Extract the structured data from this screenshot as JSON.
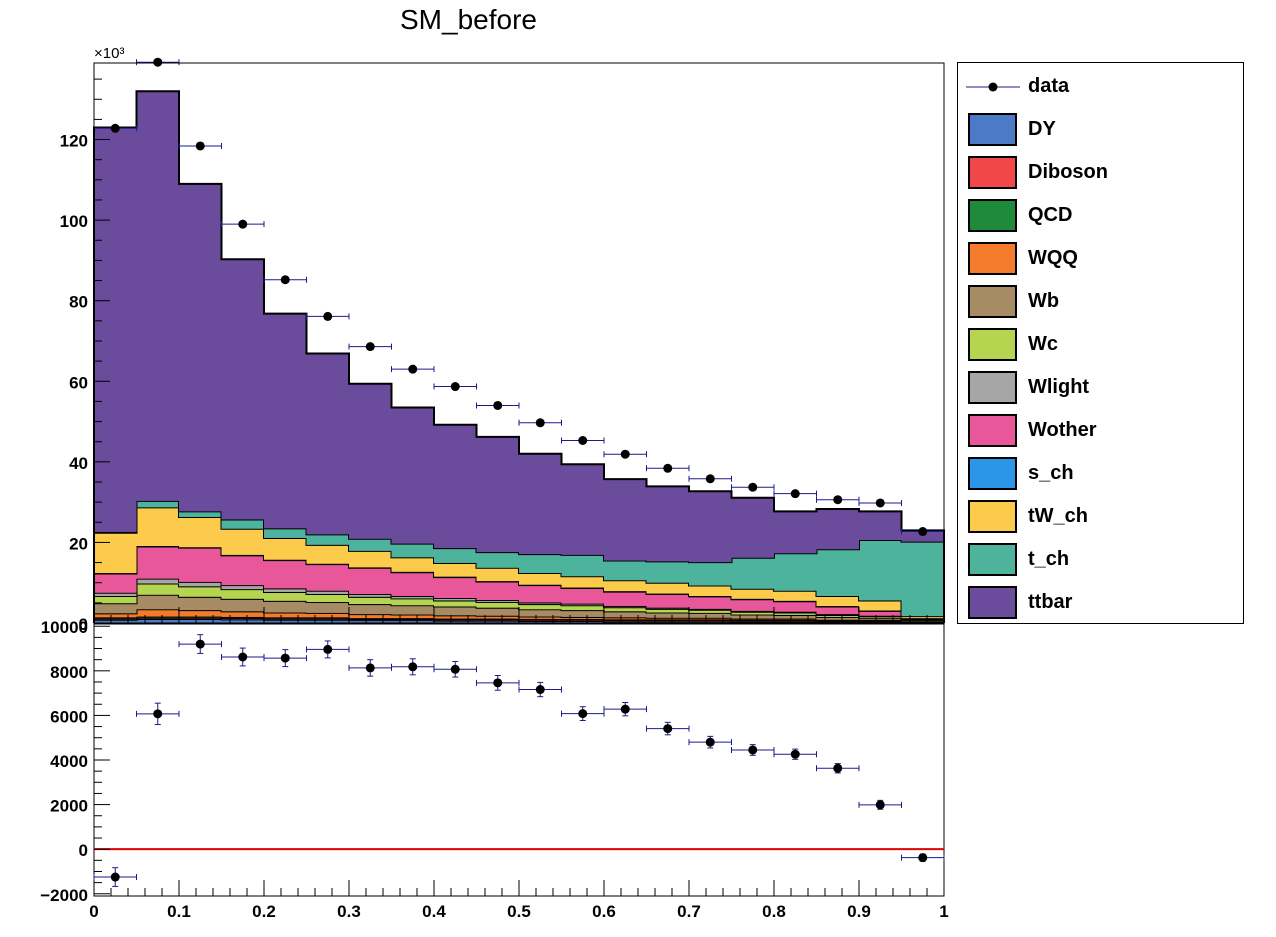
{
  "chart_data": [
    {
      "type": "bar",
      "subtype": "stacked-histogram-with-data-points",
      "title": "SM_before",
      "xlabel": "",
      "ylabel": "",
      "y_exponent_label": "×10³",
      "xlim": [
        0,
        1
      ],
      "ylim": [
        0,
        139
      ],
      "y_unit_scale": 1000,
      "y_ticks": [
        0,
        20,
        40,
        60,
        80,
        100,
        120
      ],
      "bin_edges": [
        0,
        0.05,
        0.1,
        0.15,
        0.2,
        0.25,
        0.3,
        0.35,
        0.4,
        0.45,
        0.5,
        0.55,
        0.6,
        0.65,
        0.7,
        0.75,
        0.8,
        0.85,
        0.9,
        0.95,
        1.0
      ],
      "legend_position": "right",
      "stack_order_bottom_to_top": [
        "DY",
        "Diboson",
        "QCD",
        "WQQ",
        "Wb",
        "Wc",
        "Wlight",
        "Wother",
        "s_ch",
        "tW_ch",
        "t_ch",
        "ttbar"
      ],
      "series": [
        {
          "name": "DY",
          "color": "#4d7ac7",
          "values": [
            0.8,
            1.0,
            1.0,
            0.9,
            0.8,
            0.8,
            0.7,
            0.7,
            0.6,
            0.6,
            0.5,
            0.5,
            0.4,
            0.4,
            0.4,
            0.3,
            0.3,
            0.2,
            0.2,
            0.1
          ]
        },
        {
          "name": "Diboson",
          "color": "#f04848",
          "values": [
            0.3,
            0.3,
            0.3,
            0.3,
            0.3,
            0.3,
            0.3,
            0.3,
            0.3,
            0.3,
            0.3,
            0.3,
            0.3,
            0.3,
            0.3,
            0.3,
            0.3,
            0.2,
            0.2,
            0.1
          ]
        },
        {
          "name": "QCD",
          "color": "#1f8a3c",
          "values": [
            0.3,
            0.3,
            0.3,
            0.3,
            0.3,
            0.3,
            0.2,
            0.2,
            0.2,
            0.2,
            0.2,
            0.2,
            0.2,
            0.2,
            0.2,
            0.2,
            0.2,
            0.2,
            0.2,
            0.1
          ]
        },
        {
          "name": "WQQ",
          "color": "#f37b2b",
          "values": [
            1.0,
            1.8,
            1.6,
            1.4,
            1.2,
            1.1,
            1.0,
            0.9,
            0.8,
            0.7,
            0.6,
            0.5,
            0.5,
            0.4,
            0.4,
            0.3,
            0.3,
            0.2,
            0.2,
            0.1
          ]
        },
        {
          "name": "Wb",
          "color": "#a78b64",
          "values": [
            2.5,
            3.6,
            3.3,
            3.1,
            2.9,
            2.7,
            2.5,
            2.3,
            2.2,
            2.0,
            1.8,
            1.7,
            1.5,
            1.3,
            1.2,
            1.0,
            0.9,
            0.7,
            0.5,
            0.3
          ]
        },
        {
          "name": "Wc",
          "color": "#b5d44f",
          "values": [
            1.8,
            2.8,
            2.6,
            2.4,
            2.2,
            2.0,
            1.8,
            1.7,
            1.5,
            1.4,
            1.3,
            1.2,
            1.0,
            0.9,
            0.8,
            0.7,
            0.6,
            0.5,
            0.4,
            0.2
          ]
        },
        {
          "name": "Wlight",
          "color": "#a6a6a6",
          "values": [
            0.8,
            1.2,
            1.1,
            1.0,
            0.9,
            0.8,
            0.7,
            0.6,
            0.6,
            0.5,
            0.4,
            0.4,
            0.3,
            0.3,
            0.2,
            0.2,
            0.2,
            0.2,
            0.1,
            0.1
          ]
        },
        {
          "name": "Wother",
          "color": "#e8579a",
          "values": [
            4.8,
            8.0,
            8.5,
            7.4,
            7.0,
            6.6,
            6.5,
            5.9,
            5.2,
            4.6,
            4.3,
            3.9,
            3.6,
            3.4,
            3.1,
            2.9,
            2.6,
            1.9,
            1.2,
            0.1
          ]
        },
        {
          "name": "s_ch",
          "color": "#2b95e8",
          "values": [
            0.1,
            0.1,
            0.1,
            0.1,
            0.1,
            0.1,
            0.1,
            0.1,
            0.1,
            0.1,
            0.1,
            0.1,
            0.1,
            0.1,
            0.1,
            0.1,
            0.1,
            0.1,
            0.1,
            0.1
          ]
        },
        {
          "name": "tW_ch",
          "color": "#fccb4c",
          "values": [
            10.0,
            9.6,
            7.5,
            6.5,
            5.4,
            4.7,
            4.1,
            3.6,
            3.4,
            3.3,
            2.9,
            2.8,
            2.7,
            2.7,
            2.6,
            2.5,
            2.5,
            2.5,
            2.5,
            0.5
          ]
        },
        {
          "name": "t_ch",
          "color": "#4db39c",
          "values": [
            0.2,
            1.6,
            1.4,
            2.3,
            2.4,
            2.6,
            3.0,
            3.4,
            3.7,
            3.9,
            4.7,
            5.3,
            4.9,
            5.3,
            5.8,
            7.7,
            9.3,
            11.6,
            15.0,
            18.5
          ]
        },
        {
          "name": "ttbar",
          "color": "#6a4b9c",
          "values": [
            100.4,
            101.7,
            81.3,
            64.6,
            53.3,
            44.9,
            38.5,
            33.8,
            30.6,
            28.6,
            24.9,
            22.5,
            20.2,
            18.6,
            17.6,
            14.9,
            10.4,
            10.0,
            7.1,
            2.8
          ]
        }
      ],
      "data_series": {
        "name": "data",
        "color": "#000000",
        "x": [
          0.025,
          0.075,
          0.125,
          0.175,
          0.225,
          0.275,
          0.325,
          0.375,
          0.425,
          0.475,
          0.525,
          0.575,
          0.625,
          0.675,
          0.725,
          0.775,
          0.825,
          0.875,
          0.925,
          0.975
        ],
        "values": [
          122.8,
          139.2,
          118.4,
          99.0,
          85.2,
          76.1,
          68.6,
          63.0,
          58.7,
          54.0,
          49.7,
          45.3,
          41.9,
          38.4,
          35.8,
          33.7,
          32.1,
          30.6,
          29.8,
          22.7
        ]
      }
    },
    {
      "type": "scatter",
      "title": "",
      "xlabel": "",
      "ylabel": "",
      "xlim": [
        0,
        1
      ],
      "ylim": [
        -2100,
        10100
      ],
      "x_ticks": [
        0,
        0.1,
        0.2,
        0.3,
        0.4,
        0.5,
        0.6,
        0.7,
        0.8,
        0.9,
        1
      ],
      "x_tick_labels": [
        "0",
        "0.1",
        "0.2",
        "0.3",
        "0.4",
        "0.5",
        "0.6",
        "0.7",
        "0.8",
        "0.9",
        "1"
      ],
      "y_ticks": [
        -2000,
        0,
        2000,
        4000,
        6000,
        8000,
        10000
      ],
      "y_tick_labels": [
        "−2000",
        "0",
        "2000",
        "4000",
        "6000",
        "8000",
        "10000"
      ],
      "reference_line": {
        "y": 0,
        "color": "#e00000"
      },
      "points": {
        "x": [
          0.025,
          0.075,
          0.125,
          0.175,
          0.225,
          0.275,
          0.325,
          0.375,
          0.425,
          0.475,
          0.525,
          0.575,
          0.625,
          0.675,
          0.725,
          0.775,
          0.825,
          0.875,
          0.925,
          0.975
        ],
        "y": [
          -1250,
          6070,
          9200,
          8620,
          8570,
          8960,
          8130,
          8180,
          8070,
          7460,
          7160,
          6080,
          6280,
          5410,
          4800,
          4450,
          4260,
          3630,
          1990,
          -380
        ],
        "yerr": [
          420,
          480,
          420,
          400,
          380,
          380,
          370,
          360,
          350,
          330,
          320,
          310,
          300,
          280,
          260,
          240,
          230,
          210,
          200,
          160
        ]
      }
    }
  ],
  "legend": {
    "entries": [
      {
        "label": "data",
        "kind": "marker",
        "color": "#000000"
      },
      {
        "label": "DY",
        "kind": "fill",
        "color": "#4d7ac7"
      },
      {
        "label": "Diboson",
        "kind": "fill",
        "color": "#f04848"
      },
      {
        "label": "QCD",
        "kind": "fill",
        "color": "#1f8a3c"
      },
      {
        "label": "WQQ",
        "kind": "fill",
        "color": "#f37b2b"
      },
      {
        "label": "Wb",
        "kind": "fill",
        "color": "#a78b64"
      },
      {
        "label": "Wc",
        "kind": "fill",
        "color": "#b5d44f"
      },
      {
        "label": "Wlight",
        "kind": "fill",
        "color": "#a6a6a6"
      },
      {
        "label": "Wother",
        "kind": "fill",
        "color": "#e8579a"
      },
      {
        "label": "s_ch",
        "kind": "fill",
        "color": "#2b95e8"
      },
      {
        "label": "tW_ch",
        "kind": "fill",
        "color": "#fccb4c"
      },
      {
        "label": "t_ch",
        "kind": "fill",
        "color": "#4db39c"
      },
      {
        "label": "ttbar",
        "kind": "fill",
        "color": "#6a4b9c"
      }
    ]
  }
}
